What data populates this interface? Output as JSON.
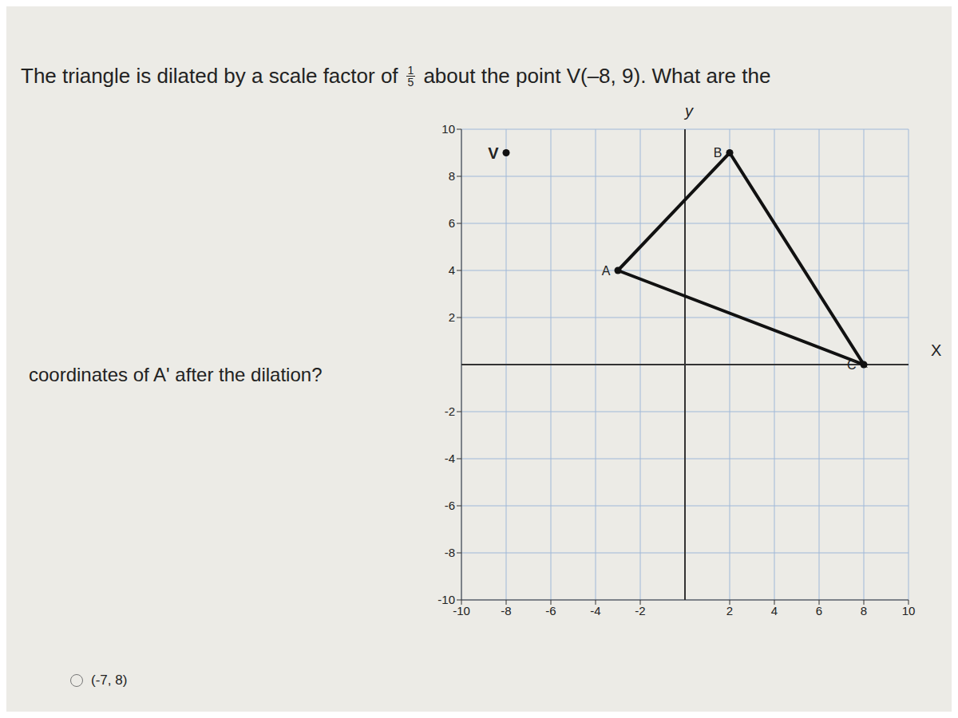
{
  "question": {
    "text_before_fraction": "The triangle is dilated by a scale factor of",
    "fraction_numerator": "1",
    "fraction_denominator": "5",
    "text_after_fraction": "about the point V(–8, 9). What are the",
    "text_line2": "coordinates of A' after the dilation?",
    "options": [
      "(-7, 8)"
    ]
  },
  "chart_data": {
    "type": "scatter",
    "x_label": "X",
    "y_label": "y",
    "xlim": [
      -10,
      10
    ],
    "ylim": [
      -10,
      10
    ],
    "xticks": [
      -10,
      -8,
      -6,
      -4,
      -2,
      2,
      4,
      6,
      8,
      10
    ],
    "yticks": [
      -10,
      -8,
      -6,
      -4,
      -2,
      2,
      4,
      6,
      8,
      10
    ],
    "grid": true,
    "color": "#111111",
    "points": [
      {
        "label": "A",
        "x": -3,
        "y": 4
      },
      {
        "label": "B",
        "x": 2,
        "y": 9
      },
      {
        "label": "C",
        "x": 8,
        "y": 0
      }
    ],
    "center": {
      "label": "V",
      "x": -8,
      "y": 9
    }
  }
}
